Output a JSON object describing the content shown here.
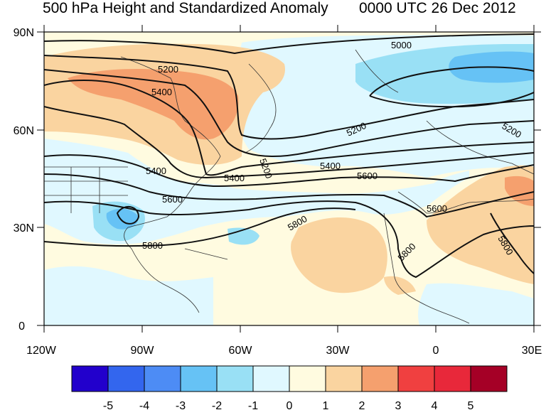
{
  "header": {
    "title": "500 hPa Height and Standardized Anomaly",
    "valid_time": "0000 UTC 26 Dec 2012"
  },
  "map": {
    "region": "North Atlantic",
    "y_axis_labels": [
      "90N",
      "60N",
      "30N",
      "0"
    ],
    "x_axis_labels": [
      "120W",
      "90W",
      "60W",
      "30W",
      "0",
      "30E"
    ],
    "contour_labels": [
      "5000",
      "5200",
      "5400",
      "5200",
      "5200",
      "5200",
      "5400",
      "5400",
      "5400",
      "5600",
      "5600",
      "5600",
      "5800",
      "5800",
      "5800",
      "5800"
    ]
  },
  "colorbar": {
    "labels": [
      "-5",
      "-4",
      "-3",
      "-2",
      "-1",
      "0",
      "1",
      "2",
      "3",
      "4",
      "5"
    ],
    "colors": [
      "#2200cc",
      "#3366ee",
      "#4d8cf5",
      "#66c2f5",
      "#99e0f5",
      "#e0f8ff",
      "#fffbe0",
      "#fad4a0",
      "#f5a06e",
      "#f04040",
      "#e8283a",
      "#a50026"
    ]
  }
}
